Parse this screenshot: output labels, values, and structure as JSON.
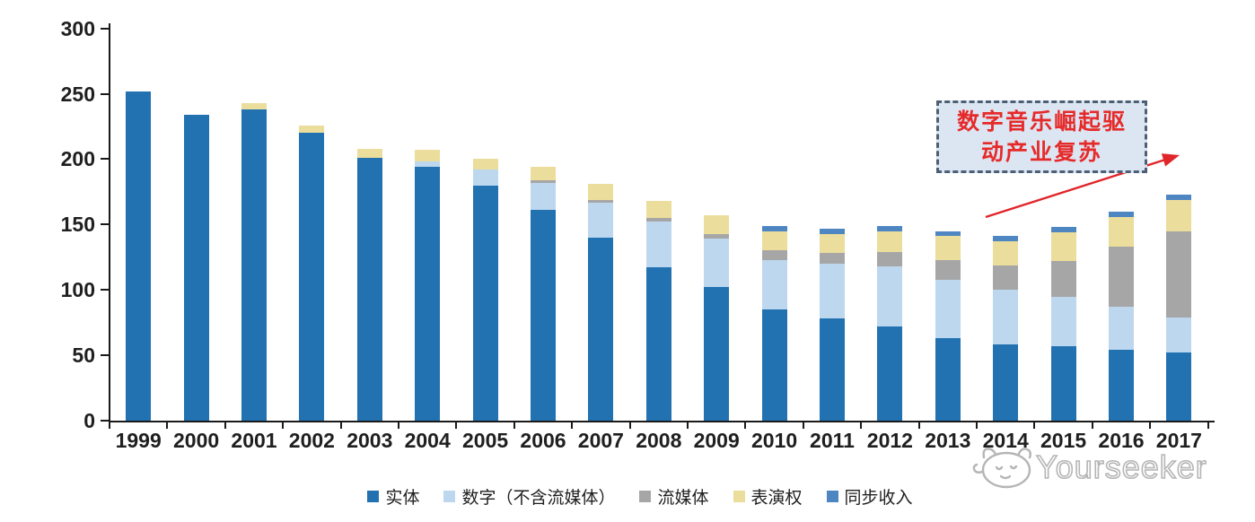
{
  "chart_data": {
    "type": "bar",
    "stacked": true,
    "title": "",
    "xlabel": "",
    "ylabel": "",
    "ylim": [
      0,
      300
    ],
    "yticks": [
      0,
      50,
      100,
      150,
      200,
      250,
      300
    ],
    "grid": false,
    "legend_position": "bottom",
    "categories": [
      "1999",
      "2000",
      "2001",
      "2002",
      "2003",
      "2004",
      "2005",
      "2006",
      "2007",
      "2008",
      "2009",
      "2010",
      "2011",
      "2012",
      "2013",
      "2014",
      "2015",
      "2016",
      "2017"
    ],
    "series": [
      {
        "name": "实体",
        "color": "#2272B2",
        "values": [
          252,
          234,
          238,
          220,
          201,
          194,
          180,
          161,
          140,
          117,
          102,
          85,
          78,
          72,
          63,
          58,
          57,
          54,
          52
        ]
      },
      {
        "name": "数字（不含流媒体）",
        "color": "#BDD7EE",
        "values": [
          0,
          0,
          0,
          0,
          0,
          4,
          12,
          21,
          27,
          35,
          37,
          38,
          42,
          46,
          45,
          42,
          38,
          33,
          27
        ]
      },
      {
        "name": "流媒体",
        "color": "#A6A6A6",
        "values": [
          0,
          0,
          0,
          0,
          0,
          0,
          0,
          2,
          2,
          3,
          4,
          7,
          8,
          11,
          15,
          19,
          27,
          46,
          66
        ]
      },
      {
        "name": "表演权",
        "color": "#EBDD9B",
        "values": [
          0,
          0,
          5,
          6,
          7,
          9,
          8,
          10,
          12,
          13,
          14,
          15,
          15,
          16,
          18,
          18,
          22,
          23,
          24
        ]
      },
      {
        "name": "同步收入",
        "color": "#4E86C2",
        "values": [
          0,
          0,
          0,
          0,
          0,
          0,
          0,
          0,
          0,
          0,
          0,
          4,
          4,
          4,
          4,
          4,
          4,
          4,
          4
        ]
      }
    ]
  },
  "annotation": {
    "line1": "数字音乐崛起驱",
    "line2": "动产业复苏",
    "text_color": "#E62A2A",
    "box_fill": "#DCE6F2",
    "box_border": "#4D5F75",
    "arrow_color": "#E0262A"
  },
  "watermark": {
    "brand": "Yourseeker",
    "color": "#B5B5B5"
  }
}
